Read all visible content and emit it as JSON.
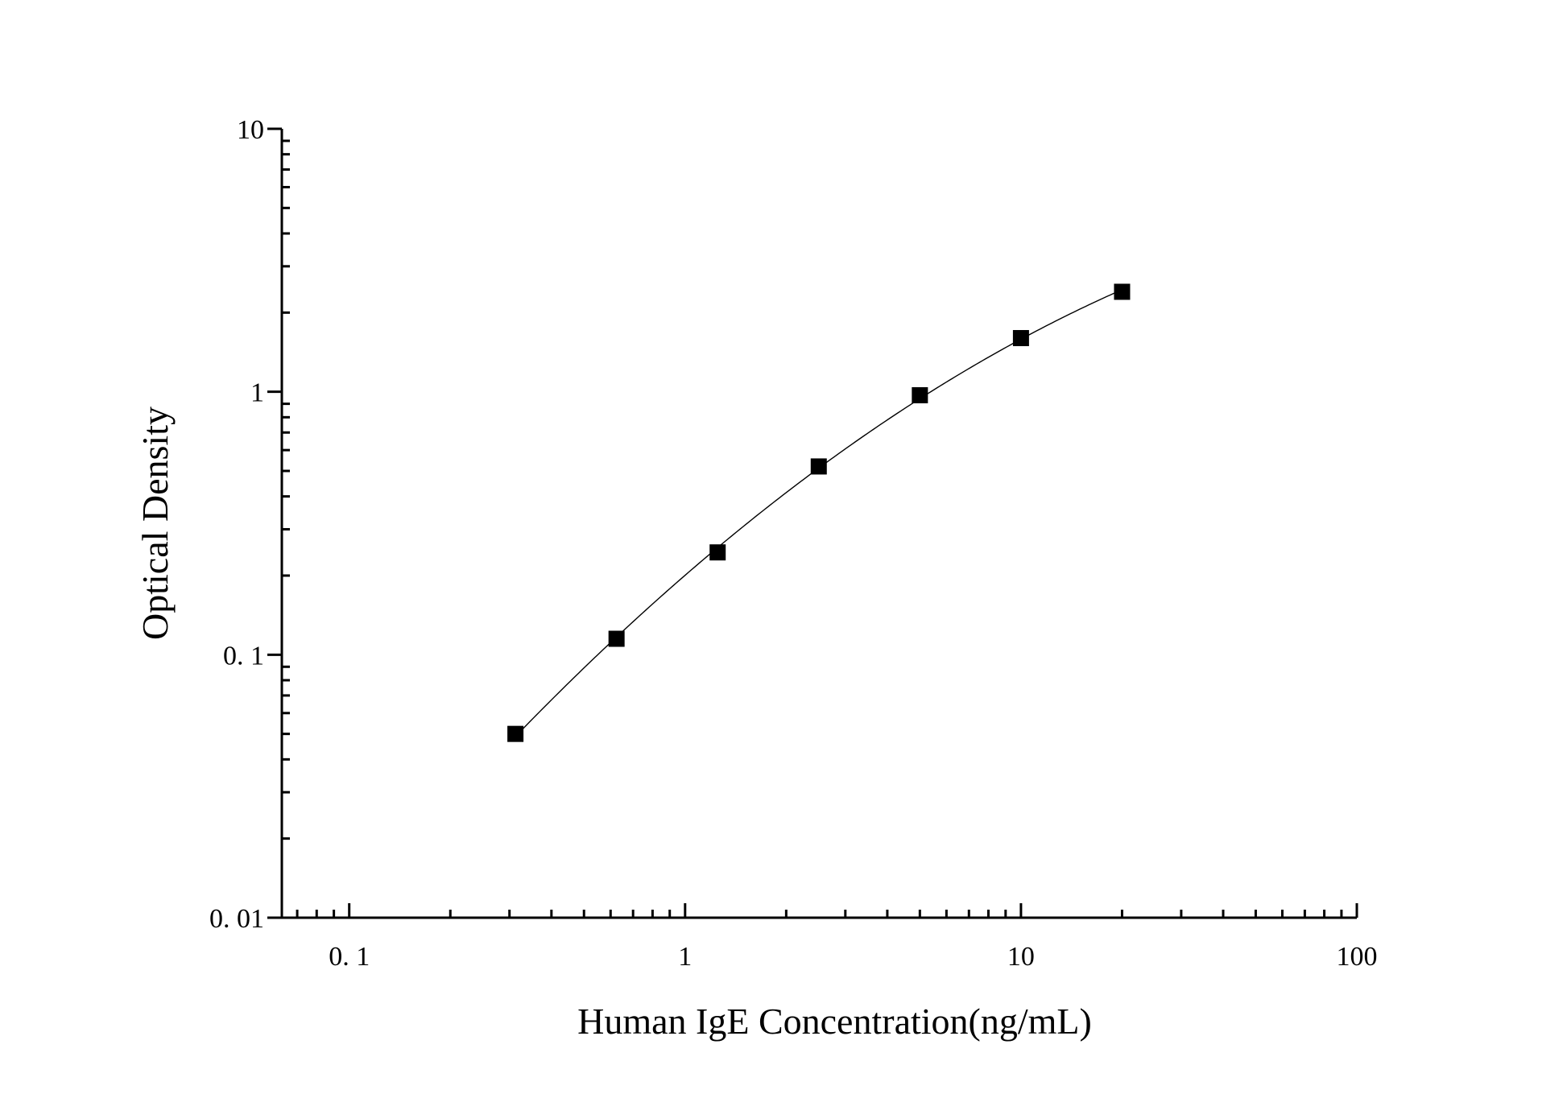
{
  "chart_data": {
    "type": "scatter",
    "xlabel": "Human IgE Concentration(ng/mL)",
    "ylabel": "Optical Density",
    "x_scale": "log",
    "y_scale": "log",
    "xlim": [
      0.063,
      100
    ],
    "ylim": [
      0.01,
      10
    ],
    "x_ticks": [
      {
        "value": 0.1,
        "label": "0. 1"
      },
      {
        "value": 1,
        "label": "1"
      },
      {
        "value": 10,
        "label": "10"
      },
      {
        "value": 100,
        "label": "100"
      }
    ],
    "y_ticks": [
      {
        "value": 0.01,
        "label": "0. 01"
      },
      {
        "value": 0.1,
        "label": "0. 1"
      },
      {
        "value": 1,
        "label": "1"
      },
      {
        "value": 10,
        "label": "10"
      }
    ],
    "grid": false,
    "marker": "square",
    "series": [
      {
        "x": [
          0.3125,
          0.625,
          1.25,
          2.5,
          5,
          10,
          20
        ],
        "y": [
          0.05,
          0.115,
          0.245,
          0.52,
          0.97,
          1.6,
          2.4
        ]
      }
    ],
    "fit_curve": true,
    "colors": {
      "marker": "#000000",
      "line": "#000000",
      "axis": "#000000"
    }
  }
}
